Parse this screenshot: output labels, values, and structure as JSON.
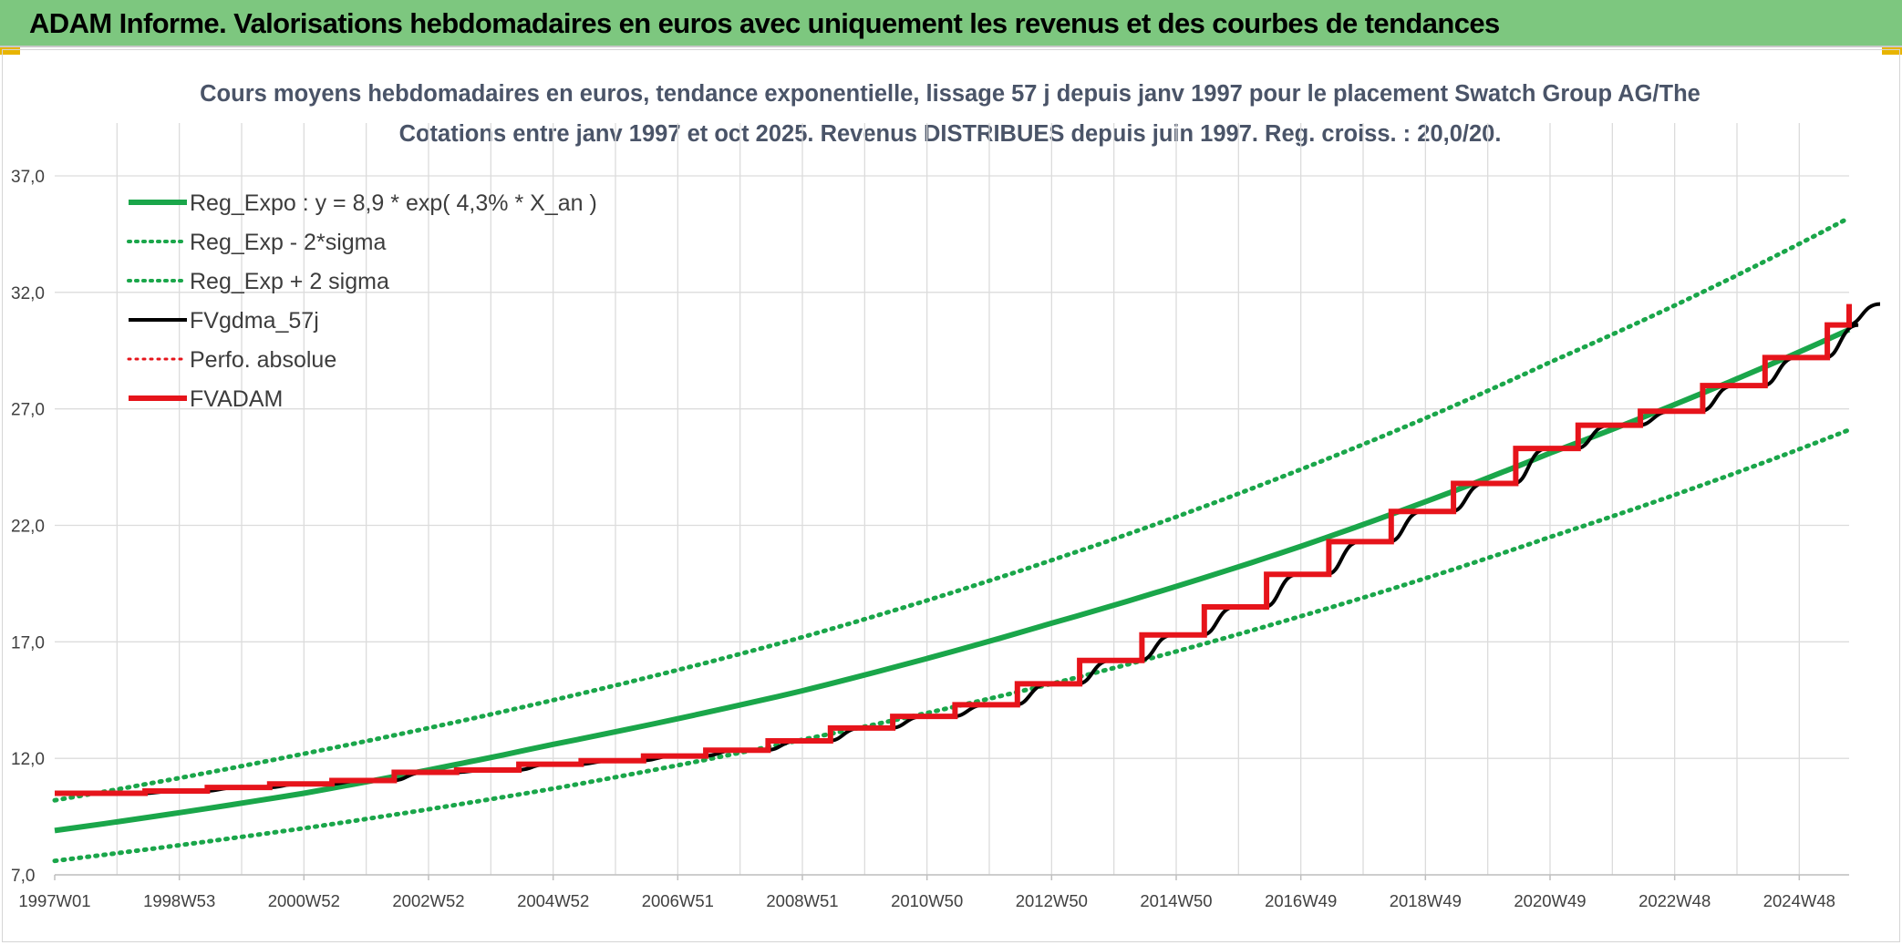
{
  "banner": {
    "title": "ADAM Informe. Valorisations hebdomadaires en euros avec uniquement les revenus et des courbes de tendances"
  },
  "colors": {
    "banner_bg": "#7dc77f",
    "green": "#1aa64a",
    "red": "#e6141b",
    "black": "#000000",
    "corner_accent": "#e8b400"
  },
  "chart_data": {
    "type": "line",
    "title": "Cours moyens hebdomadaires en euros, tendance exponentielle, lissage 57 j depuis janv 1997 pour le placement Swatch Group AG/The",
    "subtitle": "Cotations entre janv 1997 et oct 2025. Revenus DISTRIBUES depuis juin 1997. Reg. croiss. : 20,0/20.",
    "xlabel": "",
    "ylabel": "",
    "x_range": [
      1997.0,
      2025.8
    ],
    "ylim": [
      7.0,
      37.0
    ],
    "y_ticks": [
      "7,0",
      "12,0",
      "17,0",
      "22,0",
      "27,0",
      "32,0",
      "37,0"
    ],
    "x_tick_labels": [
      "1997W01",
      "1998W53",
      "2000W52",
      "2002W52",
      "2004W52",
      "2006W51",
      "2008W51",
      "2010W50",
      "2012W50",
      "2014W50",
      "2016W49",
      "2018W49",
      "2020W49",
      "2022W48",
      "2024W48"
    ],
    "x_tick_positions": [
      1997.0,
      1999.0,
      2001.0,
      2003.0,
      2005.0,
      2007.0,
      2009.0,
      2011.0,
      2013.0,
      2015.0,
      2017.0,
      2019.0,
      2021.0,
      2023.0,
      2025.0
    ],
    "legend": [
      {
        "label": "Reg_Expo : y = 8,9 * exp( 4,3% *  X_an )",
        "style": "solid",
        "color": "#1aa64a",
        "width": 6
      },
      {
        "label": "Reg_Exp - 2*sigma",
        "style": "dotted",
        "color": "#1aa64a",
        "width": 4
      },
      {
        "label": "Reg_Exp + 2 sigma",
        "style": "dotted",
        "color": "#1aa64a",
        "width": 4
      },
      {
        "label": "FVgdma_57j",
        "style": "solid",
        "color": "#000000",
        "width": 4
      },
      {
        "label": "Perfo. absolue",
        "style": "dotted",
        "color": "#e6141b",
        "width": 3
      },
      {
        "label": "FVADAM",
        "style": "solid",
        "color": "#e6141b",
        "width": 6
      }
    ],
    "series": [
      {
        "name": "Reg_Expo",
        "x": [
          1997.0,
          2001.0,
          2005.0,
          2009.0,
          2013.0,
          2017.0,
          2021.0,
          2025.8
        ],
        "y": [
          8.9,
          10.5,
          12.6,
          14.9,
          17.8,
          21.1,
          25.1,
          30.4
        ]
      },
      {
        "name": "Reg_Exp - 2*sigma",
        "x": [
          1997.0,
          2001.0,
          2005.0,
          2009.0,
          2013.0,
          2017.0,
          2021.0,
          2025.8
        ],
        "y": [
          7.6,
          9.0,
          10.7,
          12.8,
          15.2,
          18.1,
          21.5,
          26.1
        ]
      },
      {
        "name": "Reg_Exp + 2 sigma",
        "x": [
          1997.0,
          2001.0,
          2005.0,
          2009.0,
          2013.0,
          2017.0,
          2021.0,
          2025.8
        ],
        "y": [
          10.2,
          12.2,
          14.5,
          17.2,
          20.5,
          24.4,
          29.0,
          35.2
        ]
      },
      {
        "name": "FVADAM",
        "step_x": [
          1997.0,
          1998.45,
          1999.45,
          2000.45,
          2001.45,
          2002.45,
          2003.45,
          2004.45,
          2005.45,
          2006.45,
          2007.45,
          2008.45,
          2009.45,
          2010.45,
          2011.45,
          2012.45,
          2013.45,
          2014.45,
          2015.45,
          2016.45,
          2017.45,
          2018.45,
          2019.45,
          2020.45,
          2021.45,
          2022.45,
          2023.45,
          2024.45,
          2025.45,
          2025.8
        ],
        "step_y": [
          10.5,
          10.6,
          10.75,
          10.9,
          11.05,
          11.4,
          11.5,
          11.75,
          11.9,
          12.1,
          12.35,
          12.75,
          13.3,
          13.8,
          14.3,
          15.2,
          16.2,
          17.3,
          18.5,
          19.9,
          21.3,
          22.6,
          23.8,
          25.3,
          26.3,
          26.9,
          28.0,
          29.2,
          30.6,
          31.5
        ]
      }
    ]
  }
}
